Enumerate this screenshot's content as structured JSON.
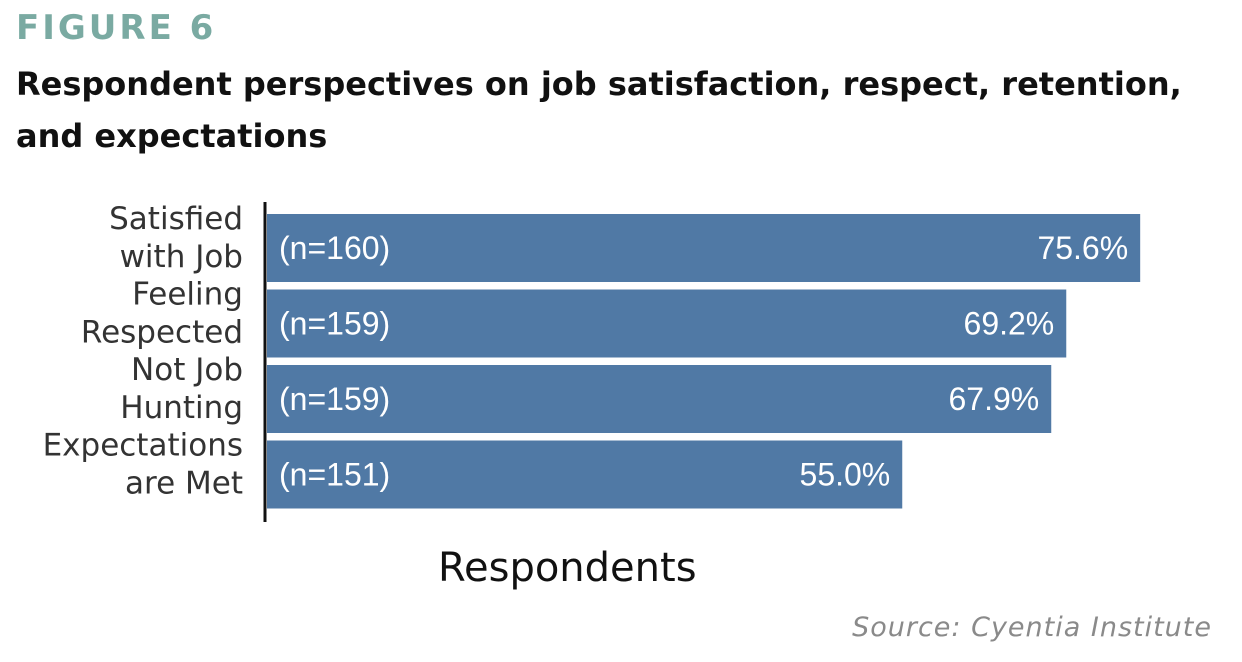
{
  "figure_label": "FIGURE 6",
  "title": "Respondent perspectives on job satisfaction, respect, retention, and expectations",
  "source": "Source: Cyentia Institute",
  "colors": {
    "bar": "#5079a5",
    "figure_label": "#7aaaa2",
    "axis": "#111111"
  },
  "chart_data": {
    "type": "bar",
    "orientation": "horizontal",
    "categories": [
      [
        "Satisfied",
        "with Job"
      ],
      [
        "Feeling",
        "Respected"
      ],
      [
        "Not Job",
        "Hunting"
      ],
      [
        "Expectations",
        "are Met"
      ]
    ],
    "n_labels": [
      "(n=160)",
      "(n=159)",
      "(n=159)",
      "(n=151)"
    ],
    "value_labels": [
      "75.6%",
      "69.2%",
      "67.9%",
      "55.0%"
    ],
    "values": [
      75.6,
      69.2,
      67.9,
      55.0
    ],
    "xlabel": "Respondents",
    "xlim": [
      0,
      100
    ],
    "grid": false
  }
}
